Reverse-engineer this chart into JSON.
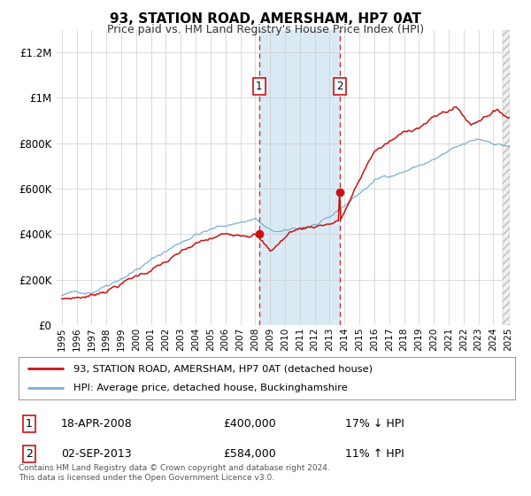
{
  "title": "93, STATION ROAD, AMERSHAM, HP7 0AT",
  "subtitle": "Price paid vs. HM Land Registry's House Price Index (HPI)",
  "legend_entry1": "93, STATION ROAD, AMERSHAM, HP7 0AT (detached house)",
  "legend_entry2": "HPI: Average price, detached house, Buckinghamshire",
  "transaction1_date": "18-APR-2008",
  "transaction1_price": 400000,
  "transaction1_label": "17% ↓ HPI",
  "transaction2_date": "02-SEP-2013",
  "transaction2_price": 584000,
  "transaction2_label": "11% ↑ HPI",
  "footer": "Contains HM Land Registry data © Crown copyright and database right 2024.\nThis data is licensed under the Open Government Licence v3.0.",
  "hpi_color": "#7bafd4",
  "price_color": "#cc1111",
  "bg_color": "#ffffff",
  "grid_color": "#cccccc",
  "shade_color": "#daeaf5",
  "ylim": [
    0,
    1300000
  ],
  "yticks": [
    0,
    200000,
    400000,
    600000,
    800000,
    1000000,
    1200000
  ],
  "start_year": 1995,
  "end_year": 2025
}
